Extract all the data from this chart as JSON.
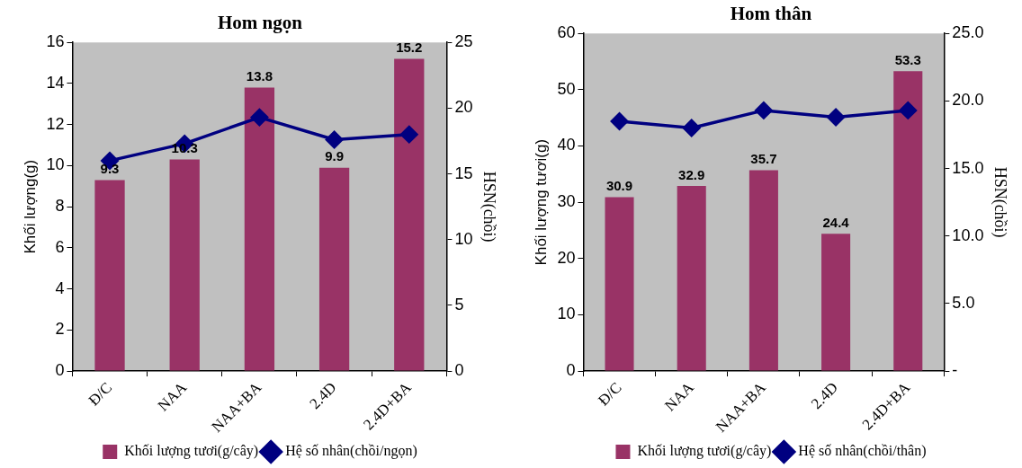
{
  "chart_data": [
    {
      "type": "bar",
      "title": "Hom ngọn",
      "categories": [
        "Đ/C",
        "NAA",
        "NAA+BA",
        "2.4D",
        "2.4D+BA"
      ],
      "ylabel": "Khối lượng(g)",
      "y2label": "HSN(chồi)",
      "ylim": [
        0,
        16
      ],
      "yticks": [
        0,
        2,
        4,
        6,
        8,
        10,
        12,
        14,
        16
      ],
      "y2lim": [
        0,
        25
      ],
      "y2ticks": [
        0,
        5,
        10,
        15,
        20,
        25
      ],
      "grid": false,
      "legend": "bottom",
      "series": [
        {
          "name": "Khối lượng tươi(g/cây)",
          "color": "#993366",
          "values": [
            9.3,
            10.3,
            13.8,
            9.9,
            15.2
          ],
          "value_labels": [
            "9.3",
            "10.3",
            "13.8",
            "9.9",
            "15.2"
          ]
        },
        {
          "name": "Hệ số nhân(chồi/ngọn)",
          "type": "line",
          "axis": "y2",
          "color": "#000080",
          "marker": "diamond",
          "line_style": "solid",
          "values": [
            16.0,
            17.3,
            19.3,
            17.6,
            18.0
          ]
        }
      ]
    },
    {
      "type": "bar",
      "title": "Hom thân",
      "categories": [
        "Đ/C",
        "NAA",
        "NAA+BA",
        "2.4D",
        "2.4D+BA"
      ],
      "ylabel": "Khối lượng tươi(g)",
      "y2label": "HSN(chồi)",
      "ylim": [
        0,
        60
      ],
      "yticks": [
        0,
        10,
        20,
        30,
        40,
        50,
        60
      ],
      "y2lim": [
        0,
        25
      ],
      "y2ticks": [
        {
          "value": 0,
          "label": "-"
        },
        {
          "value": 5,
          "label": "5.0"
        },
        {
          "value": 10,
          "label": "10.0"
        },
        {
          "value": 15,
          "label": "15.0"
        },
        {
          "value": 20,
          "label": "20.0"
        },
        {
          "value": 25,
          "label": "25.0"
        }
      ],
      "grid": false,
      "legend": "bottom",
      "series": [
        {
          "name": "Khối lượng tươi(g/cây)",
          "color": "#993366",
          "values": [
            30.9,
            32.9,
            35.7,
            24.4,
            53.3
          ],
          "value_labels": [
            "30.9",
            "32.9",
            "35.7",
            "24.4",
            "53.3"
          ]
        },
        {
          "name": "Hệ số nhân(chồi/thân)",
          "type": "line",
          "axis": "y2",
          "color": "#000080",
          "marker": "diamond",
          "line_style": "solid",
          "values": [
            18.5,
            18.0,
            19.3,
            18.8,
            19.3
          ]
        }
      ]
    }
  ]
}
